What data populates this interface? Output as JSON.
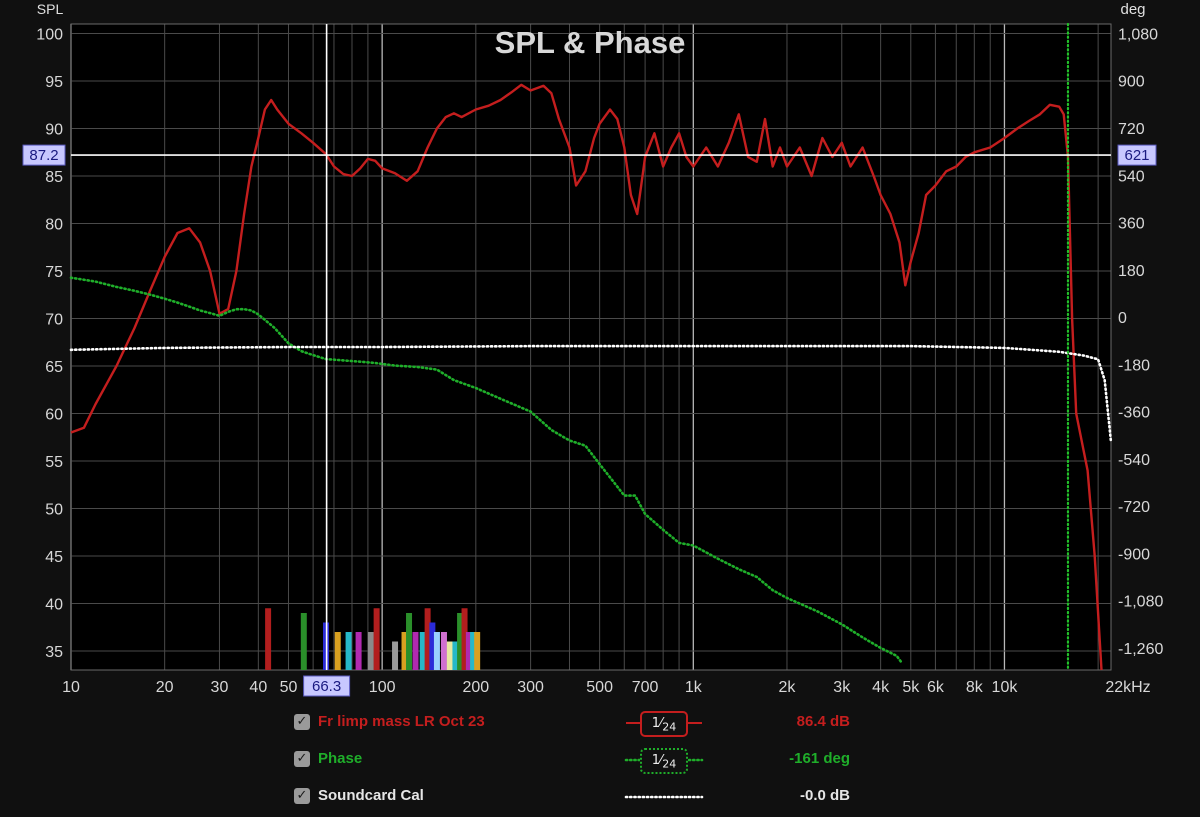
{
  "chart_data": {
    "type": "line",
    "title": "SPL & Phase",
    "y_left_label": "SPL",
    "y_right_label": "deg",
    "x_unit_label": "22kHz",
    "x_scale": "log",
    "xlim": [
      10,
      22000
    ],
    "ylim_left": [
      33,
      101
    ],
    "ylim_right": [
      -1344,
      1116
    ],
    "x_ticks": [
      {
        "v": 10,
        "label": "10"
      },
      {
        "v": 20,
        "label": "20"
      },
      {
        "v": 30,
        "label": "30"
      },
      {
        "v": 40,
        "label": "40"
      },
      {
        "v": 50,
        "label": "50"
      },
      {
        "v": 100,
        "label": "100"
      },
      {
        "v": 200,
        "label": "200"
      },
      {
        "v": 300,
        "label": "300"
      },
      {
        "v": 500,
        "label": "500"
      },
      {
        "v": 700,
        "label": "700"
      },
      {
        "v": 1000,
        "label": "1k"
      },
      {
        "v": 2000,
        "label": "2k"
      },
      {
        "v": 3000,
        "label": "3k"
      },
      {
        "v": 4000,
        "label": "4k"
      },
      {
        "v": 5000,
        "label": "5k"
      },
      {
        "v": 6000,
        "label": "6k"
      },
      {
        "v": 8000,
        "label": "8k"
      },
      {
        "v": 10000,
        "label": "10k"
      }
    ],
    "y_left_ticks": [
      100,
      95,
      90,
      85,
      80,
      75,
      70,
      65,
      60,
      55,
      50,
      45,
      40,
      35
    ],
    "y_right_ticks": [
      {
        "v": 1080,
        "label": "1,080"
      },
      {
        "v": 900,
        "label": "900"
      },
      {
        "v": 720,
        "label": "720"
      },
      {
        "v": 540,
        "label": "540"
      },
      {
        "v": 360,
        "label": "360"
      },
      {
        "v": 180,
        "label": "180"
      },
      {
        "v": 0,
        "label": "0"
      },
      {
        "v": -180,
        "label": "-180"
      },
      {
        "v": -360,
        "label": "-360"
      },
      {
        "v": -540,
        "label": "-540"
      },
      {
        "v": -720,
        "label": "-720"
      },
      {
        "v": -900,
        "label": "-900"
      },
      {
        "v": -1080,
        "label": "-1,080"
      },
      {
        "v": -1260,
        "label": "-1,260"
      }
    ],
    "cursor": {
      "x": 66.3,
      "x_label": "66.3",
      "y_spl": 87.2,
      "y_left_label": "87.2",
      "y_right_label": "621"
    },
    "marker_freq": 16000,
    "grid": true,
    "series": [
      {
        "name": "Fr limp mass LR Oct 23",
        "axis": "spl",
        "color": "#c41e1e",
        "style": "solid",
        "smoothing": {
          "num": "1",
          "den": "24"
        },
        "value_label": "86.4 dB",
        "points": [
          [
            10,
            58
          ],
          [
            11,
            58.5
          ],
          [
            12,
            61
          ],
          [
            14,
            65
          ],
          [
            16,
            69
          ],
          [
            18,
            73
          ],
          [
            20,
            76.5
          ],
          [
            22,
            79
          ],
          [
            24,
            79.5
          ],
          [
            26,
            78
          ],
          [
            28,
            75
          ],
          [
            30,
            70.5
          ],
          [
            32,
            71
          ],
          [
            34,
            75
          ],
          [
            36,
            81
          ],
          [
            38,
            86
          ],
          [
            40,
            89
          ],
          [
            42,
            92
          ],
          [
            44,
            93
          ],
          [
            46,
            92
          ],
          [
            50,
            90.5
          ],
          [
            55,
            89.5
          ],
          [
            60,
            88.5
          ],
          [
            66,
            87.3
          ],
          [
            70,
            86
          ],
          [
            75,
            85.2
          ],
          [
            80,
            85
          ],
          [
            85,
            85.8
          ],
          [
            90,
            86.8
          ],
          [
            95,
            86.6
          ],
          [
            100,
            85.8
          ],
          [
            110,
            85.3
          ],
          [
            120,
            84.5
          ],
          [
            130,
            85.5
          ],
          [
            140,
            88
          ],
          [
            150,
            90
          ],
          [
            160,
            91.2
          ],
          [
            170,
            91.6
          ],
          [
            180,
            91.2
          ],
          [
            200,
            92
          ],
          [
            220,
            92.4
          ],
          [
            240,
            93
          ],
          [
            260,
            93.8
          ],
          [
            280,
            94.6
          ],
          [
            300,
            94
          ],
          [
            330,
            94.5
          ],
          [
            350,
            93.7
          ],
          [
            370,
            91
          ],
          [
            400,
            88
          ],
          [
            420,
            84
          ],
          [
            450,
            85.5
          ],
          [
            480,
            89
          ],
          [
            500,
            90.5
          ],
          [
            540,
            92
          ],
          [
            570,
            91
          ],
          [
            600,
            88
          ],
          [
            630,
            83
          ],
          [
            660,
            81
          ],
          [
            680,
            84
          ],
          [
            700,
            87
          ],
          [
            750,
            89.5
          ],
          [
            800,
            86
          ],
          [
            850,
            88
          ],
          [
            900,
            89.5
          ],
          [
            950,
            87
          ],
          [
            1000,
            86
          ],
          [
            1100,
            88
          ],
          [
            1200,
            86
          ],
          [
            1300,
            88.5
          ],
          [
            1400,
            91.5
          ],
          [
            1500,
            87
          ],
          [
            1600,
            86.5
          ],
          [
            1700,
            91
          ],
          [
            1800,
            86
          ],
          [
            1900,
            88
          ],
          [
            2000,
            86
          ],
          [
            2200,
            88
          ],
          [
            2400,
            85
          ],
          [
            2600,
            89
          ],
          [
            2800,
            87
          ],
          [
            3000,
            88.5
          ],
          [
            3200,
            86
          ],
          [
            3500,
            88
          ],
          [
            3800,
            85
          ],
          [
            4000,
            83
          ],
          [
            4300,
            81
          ],
          [
            4600,
            78
          ],
          [
            4800,
            73.5
          ],
          [
            5000,
            76
          ],
          [
            5300,
            79
          ],
          [
            5600,
            83
          ],
          [
            6000,
            84
          ],
          [
            6500,
            85.5
          ],
          [
            7000,
            86
          ],
          [
            7500,
            87
          ],
          [
            8000,
            87.5
          ],
          [
            9000,
            88
          ],
          [
            10000,
            89
          ],
          [
            11000,
            90
          ],
          [
            12000,
            90.8
          ],
          [
            13000,
            91.5
          ],
          [
            14000,
            92.5
          ],
          [
            15000,
            92.3
          ],
          [
            15500,
            91.5
          ],
          [
            16000,
            87
          ],
          [
            16500,
            70
          ],
          [
            17000,
            60
          ],
          [
            18500,
            54
          ],
          [
            19500,
            45
          ],
          [
            20500,
            33
          ]
        ]
      },
      {
        "name": "Phase",
        "axis": "phase",
        "color": "#1fae2a",
        "style": "dotted",
        "smoothing": {
          "num": "1",
          "den": "24"
        },
        "value_label": "-161 deg",
        "points": [
          [
            10,
            150
          ],
          [
            12,
            135
          ],
          [
            14,
            115
          ],
          [
            16,
            100
          ],
          [
            18,
            85
          ],
          [
            20,
            70
          ],
          [
            22,
            55
          ],
          [
            24,
            40
          ],
          [
            26,
            25
          ],
          [
            28,
            15
          ],
          [
            30,
            5
          ],
          [
            32,
            20
          ],
          [
            34,
            30
          ],
          [
            36,
            30
          ],
          [
            38,
            25
          ],
          [
            40,
            10
          ],
          [
            45,
            -40
          ],
          [
            50,
            -100
          ],
          [
            55,
            -130
          ],
          [
            60,
            -145
          ],
          [
            66,
            -160
          ],
          [
            75,
            -165
          ],
          [
            85,
            -170
          ],
          [
            95,
            -175
          ],
          [
            110,
            -185
          ],
          [
            130,
            -190
          ],
          [
            150,
            -200
          ],
          [
            170,
            -240
          ],
          [
            200,
            -270
          ],
          [
            250,
            -320
          ],
          [
            300,
            -360
          ],
          [
            350,
            -430
          ],
          [
            400,
            -470
          ],
          [
            450,
            -490
          ],
          [
            500,
            -560
          ],
          [
            600,
            -680
          ],
          [
            650,
            -680
          ],
          [
            700,
            -750
          ],
          [
            800,
            -810
          ],
          [
            900,
            -860
          ],
          [
            1000,
            -870
          ],
          [
            1200,
            -920
          ],
          [
            1400,
            -960
          ],
          [
            1600,
            -990
          ],
          [
            1800,
            -1040
          ],
          [
            2000,
            -1070
          ],
          [
            2500,
            -1120
          ],
          [
            3000,
            -1170
          ],
          [
            3500,
            -1220
          ],
          [
            4000,
            -1260
          ],
          [
            4500,
            -1290
          ],
          [
            4700,
            -1320
          ]
        ]
      },
      {
        "name": "Soundcard Cal",
        "axis": "spl",
        "color": "#ffffff",
        "style": "dotted",
        "value_label": "-0.0 dB",
        "points": [
          [
            10,
            66.7
          ],
          [
            20,
            66.9
          ],
          [
            50,
            67
          ],
          [
            100,
            67
          ],
          [
            300,
            67.1
          ],
          [
            1000,
            67.1
          ],
          [
            5000,
            67.1
          ],
          [
            10000,
            66.9
          ],
          [
            15000,
            66.5
          ],
          [
            18000,
            66.1
          ],
          [
            20000,
            65.7
          ],
          [
            21000,
            63.5
          ],
          [
            22000,
            57
          ]
        ]
      }
    ],
    "bars": [
      {
        "f": 43,
        "top": 39.5,
        "color": "#b21e1e"
      },
      {
        "f": 56,
        "top": 39,
        "color": "#2a8f2a"
      },
      {
        "f": 66,
        "top": 38,
        "color": "#2b2bd8"
      },
      {
        "f": 72,
        "top": 37,
        "color": "#d8a020"
      },
      {
        "f": 78,
        "top": 37,
        "color": "#26b8c8"
      },
      {
        "f": 84,
        "top": 37,
        "color": "#b02ab0"
      },
      {
        "f": 92,
        "top": 37,
        "color": "#8a8a8a"
      },
      {
        "f": 96,
        "top": 39.5,
        "color": "#b21e1e"
      },
      {
        "f": 110,
        "top": 36,
        "color": "#9a9a9a"
      },
      {
        "f": 118,
        "top": 37,
        "color": "#d8a020"
      },
      {
        "f": 122,
        "top": 39,
        "color": "#2a8f2a"
      },
      {
        "f": 128,
        "top": 37,
        "color": "#b02ab0"
      },
      {
        "f": 135,
        "top": 37,
        "color": "#26b8c8"
      },
      {
        "f": 140,
        "top": 39.5,
        "color": "#b21e1e"
      },
      {
        "f": 145,
        "top": 38,
        "color": "#2b2bd8"
      },
      {
        "f": 150,
        "top": 37,
        "color": "#9ad0ff"
      },
      {
        "f": 158,
        "top": 37,
        "color": "#d070d0"
      },
      {
        "f": 165,
        "top": 36,
        "color": "#e8e8a0"
      },
      {
        "f": 172,
        "top": 36,
        "color": "#26b8c8"
      },
      {
        "f": 178,
        "top": 39,
        "color": "#2a8f2a"
      },
      {
        "f": 184,
        "top": 39.5,
        "color": "#b21e1e"
      },
      {
        "f": 190,
        "top": 37,
        "color": "#b02ab0"
      },
      {
        "f": 196,
        "top": 37,
        "color": "#26b8c8"
      },
      {
        "f": 202,
        "top": 37,
        "color": "#d8a020"
      }
    ]
  }
}
